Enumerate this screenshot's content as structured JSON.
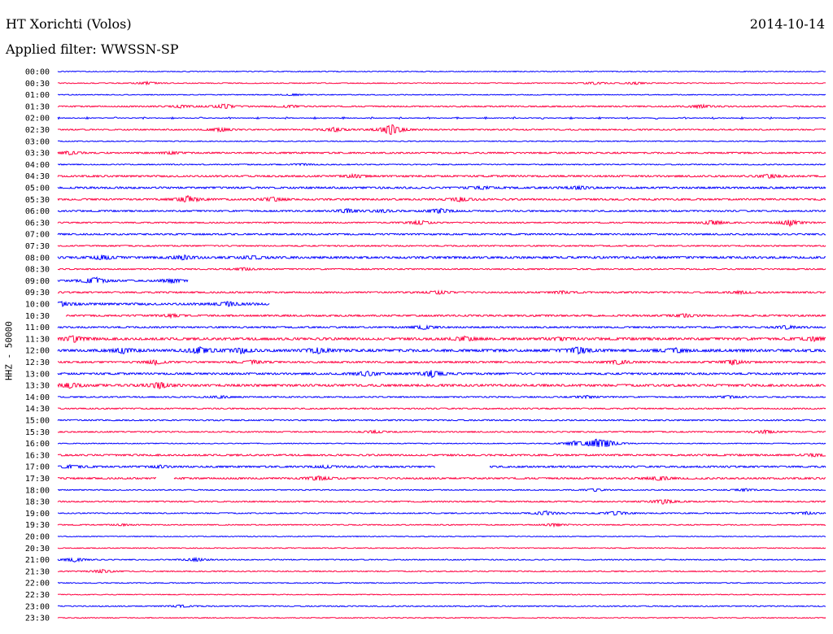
{
  "header": {
    "station": "HT Xorichti (Volos)",
    "date": "2014-10-14",
    "filter": "Applied filter: WWSSN-SP"
  },
  "chart_data": {
    "type": "line",
    "title": "HT Xorichti (Volos)",
    "ylabel": "HHZ - 50000",
    "colors": {
      "even": "#0000ff",
      "odd": "#ff0040"
    },
    "rows": [
      {
        "label": "00:00",
        "noise": 1.0,
        "bursts": []
      },
      {
        "label": "00:30",
        "noise": 1.0,
        "bursts": [
          [
            110,
            3
          ],
          [
            660,
            3
          ],
          [
            710,
            3
          ]
        ],
        "gaps": []
      },
      {
        "label": "01:00",
        "noise": 1.0,
        "bursts": [
          [
            290,
            2
          ]
        ]
      },
      {
        "label": "01:30",
        "noise": 1.5,
        "bursts": [
          [
            150,
            3
          ],
          [
            205,
            6
          ],
          [
            285,
            3
          ],
          [
            790,
            4
          ]
        ]
      },
      {
        "label": "02:00",
        "noise": 0.8,
        "bursts": [],
        "dashes": true
      },
      {
        "label": "02:30",
        "noise": 1.5,
        "bursts": [
          [
            200,
            4
          ],
          [
            340,
            5
          ],
          [
            410,
            14
          ]
        ]
      },
      {
        "label": "03:00",
        "noise": 1.0,
        "bursts": []
      },
      {
        "label": "03:30",
        "noise": 1.8,
        "bursts": [
          [
            15,
            4
          ],
          [
            140,
            3
          ]
        ]
      },
      {
        "label": "04:00",
        "noise": 1.2,
        "bursts": [
          [
            300,
            2
          ]
        ]
      },
      {
        "label": "04:30",
        "noise": 2.0,
        "bursts": [
          [
            365,
            4
          ],
          [
            875,
            4
          ]
        ]
      },
      {
        "label": "05:00",
        "noise": 2.2,
        "bursts": [
          [
            520,
            3
          ],
          [
            640,
            4
          ]
        ]
      },
      {
        "label": "05:30",
        "noise": 2.0,
        "bursts": [
          [
            160,
            8
          ],
          [
            265,
            5
          ],
          [
            495,
            5
          ]
        ]
      },
      {
        "label": "06:00",
        "noise": 1.8,
        "bursts": [
          [
            355,
            5
          ],
          [
            400,
            3
          ],
          [
            470,
            6
          ]
        ]
      },
      {
        "label": "06:30",
        "noise": 1.5,
        "bursts": [
          [
            445,
            5
          ],
          [
            805,
            6
          ],
          [
            900,
            7
          ]
        ]
      },
      {
        "label": "07:00",
        "noise": 1.8,
        "bursts": []
      },
      {
        "label": "07:30",
        "noise": 1.5,
        "bursts": []
      },
      {
        "label": "08:00",
        "noise": 2.5,
        "bursts": [
          [
            55,
            5
          ],
          [
            155,
            5
          ],
          [
            240,
            4
          ]
        ]
      },
      {
        "label": "08:30",
        "noise": 1.5,
        "bursts": [
          [
            230,
            3
          ]
        ]
      },
      {
        "label": "09:00",
        "noise": 2.0,
        "bursts": [
          [
            45,
            9
          ],
          [
            140,
            5
          ]
        ],
        "end": 160
      },
      {
        "label": "09:30",
        "noise": 1.8,
        "bursts": [
          [
            470,
            4
          ],
          [
            620,
            3
          ],
          [
            840,
            3
          ]
        ]
      },
      {
        "label": "10:00",
        "noise": 2.5,
        "bursts": [
          [
            5,
            4
          ],
          [
            210,
            5
          ]
        ],
        "end": 260
      },
      {
        "label": "10:30",
        "noise": 2.0,
        "bursts": [
          [
            140,
            3
          ],
          [
            770,
            4
          ]
        ],
        "start": 10
      },
      {
        "label": "11:00",
        "noise": 1.8,
        "bursts": [
          [
            450,
            5
          ],
          [
            895,
            4
          ]
        ]
      },
      {
        "label": "11:30",
        "noise": 2.8,
        "bursts": [
          [
            20,
            7
          ],
          [
            500,
            5
          ],
          [
            620,
            3
          ],
          [
            930,
            4
          ]
        ]
      },
      {
        "label": "12:00",
        "noise": 3.0,
        "bursts": [
          [
            80,
            6
          ],
          [
            175,
            8
          ],
          [
            225,
            6
          ],
          [
            320,
            6
          ],
          [
            640,
            8
          ],
          [
            760,
            5
          ]
        ]
      },
      {
        "label": "12:30",
        "noise": 2.0,
        "bursts": [
          [
            120,
            5
          ],
          [
            240,
            4
          ],
          [
            690,
            5
          ],
          [
            830,
            6
          ]
        ]
      },
      {
        "label": "13:00",
        "noise": 2.2,
        "bursts": [
          [
            380,
            6
          ],
          [
            460,
            8
          ]
        ]
      },
      {
        "label": "13:30",
        "noise": 2.6,
        "bursts": [
          [
            15,
            6
          ],
          [
            125,
            7
          ]
        ]
      },
      {
        "label": "14:00",
        "noise": 1.5,
        "bursts": [
          [
            200,
            3
          ],
          [
            650,
            3
          ],
          [
            825,
            3
          ]
        ]
      },
      {
        "label": "14:30",
        "noise": 1.5,
        "bursts": []
      },
      {
        "label": "15:00",
        "noise": 1.5,
        "bursts": []
      },
      {
        "label": "15:30",
        "noise": 1.5,
        "bursts": [
          [
            390,
            3
          ],
          [
            870,
            4
          ]
        ]
      },
      {
        "label": "16:00",
        "noise": 1.0,
        "bursts": [
          [
            635,
            5
          ],
          [
            662,
            10
          ],
          [
            675,
            7
          ]
        ]
      },
      {
        "label": "16:30",
        "noise": 2.0,
        "bursts": [
          [
            930,
            3
          ]
        ]
      },
      {
        "label": "17:00",
        "noise": 2.0,
        "bursts": [
          [
            15,
            4
          ],
          [
            125,
            3
          ],
          [
            330,
            3
          ]
        ],
        "gaps": [
          [
            465,
            530
          ]
        ]
      },
      {
        "label": "17:30",
        "noise": 2.0,
        "bursts": [
          [
            320,
            5
          ],
          [
            740,
            5
          ]
        ],
        "gaps": [
          [
            122,
            142
          ]
        ]
      },
      {
        "label": "18:00",
        "noise": 1.2,
        "bursts": [
          [
            660,
            3
          ],
          [
            845,
            3
          ]
        ]
      },
      {
        "label": "18:30",
        "noise": 1.5,
        "bursts": [
          [
            745,
            6
          ]
        ]
      },
      {
        "label": "19:00",
        "noise": 1.3,
        "bursts": [
          [
            600,
            5
          ],
          [
            685,
            5
          ],
          [
            920,
            3
          ]
        ]
      },
      {
        "label": "19:30",
        "noise": 1.2,
        "bursts": [
          [
            80,
            2
          ],
          [
            610,
            3
          ]
        ]
      },
      {
        "label": "20:00",
        "noise": 1.0,
        "bursts": []
      },
      {
        "label": "20:30",
        "noise": 1.0,
        "bursts": []
      },
      {
        "label": "21:00",
        "noise": 1.2,
        "bursts": [
          [
            20,
            5
          ],
          [
            170,
            4
          ]
        ]
      },
      {
        "label": "21:30",
        "noise": 1.2,
        "bursts": [
          [
            55,
            4
          ]
        ]
      },
      {
        "label": "22:00",
        "noise": 1.0,
        "bursts": []
      },
      {
        "label": "22:30",
        "noise": 1.0,
        "bursts": []
      },
      {
        "label": "23:00",
        "noise": 1.2,
        "bursts": [
          [
            150,
            3
          ]
        ]
      },
      {
        "label": "23:30",
        "noise": 1.0,
        "bursts": []
      }
    ]
  }
}
